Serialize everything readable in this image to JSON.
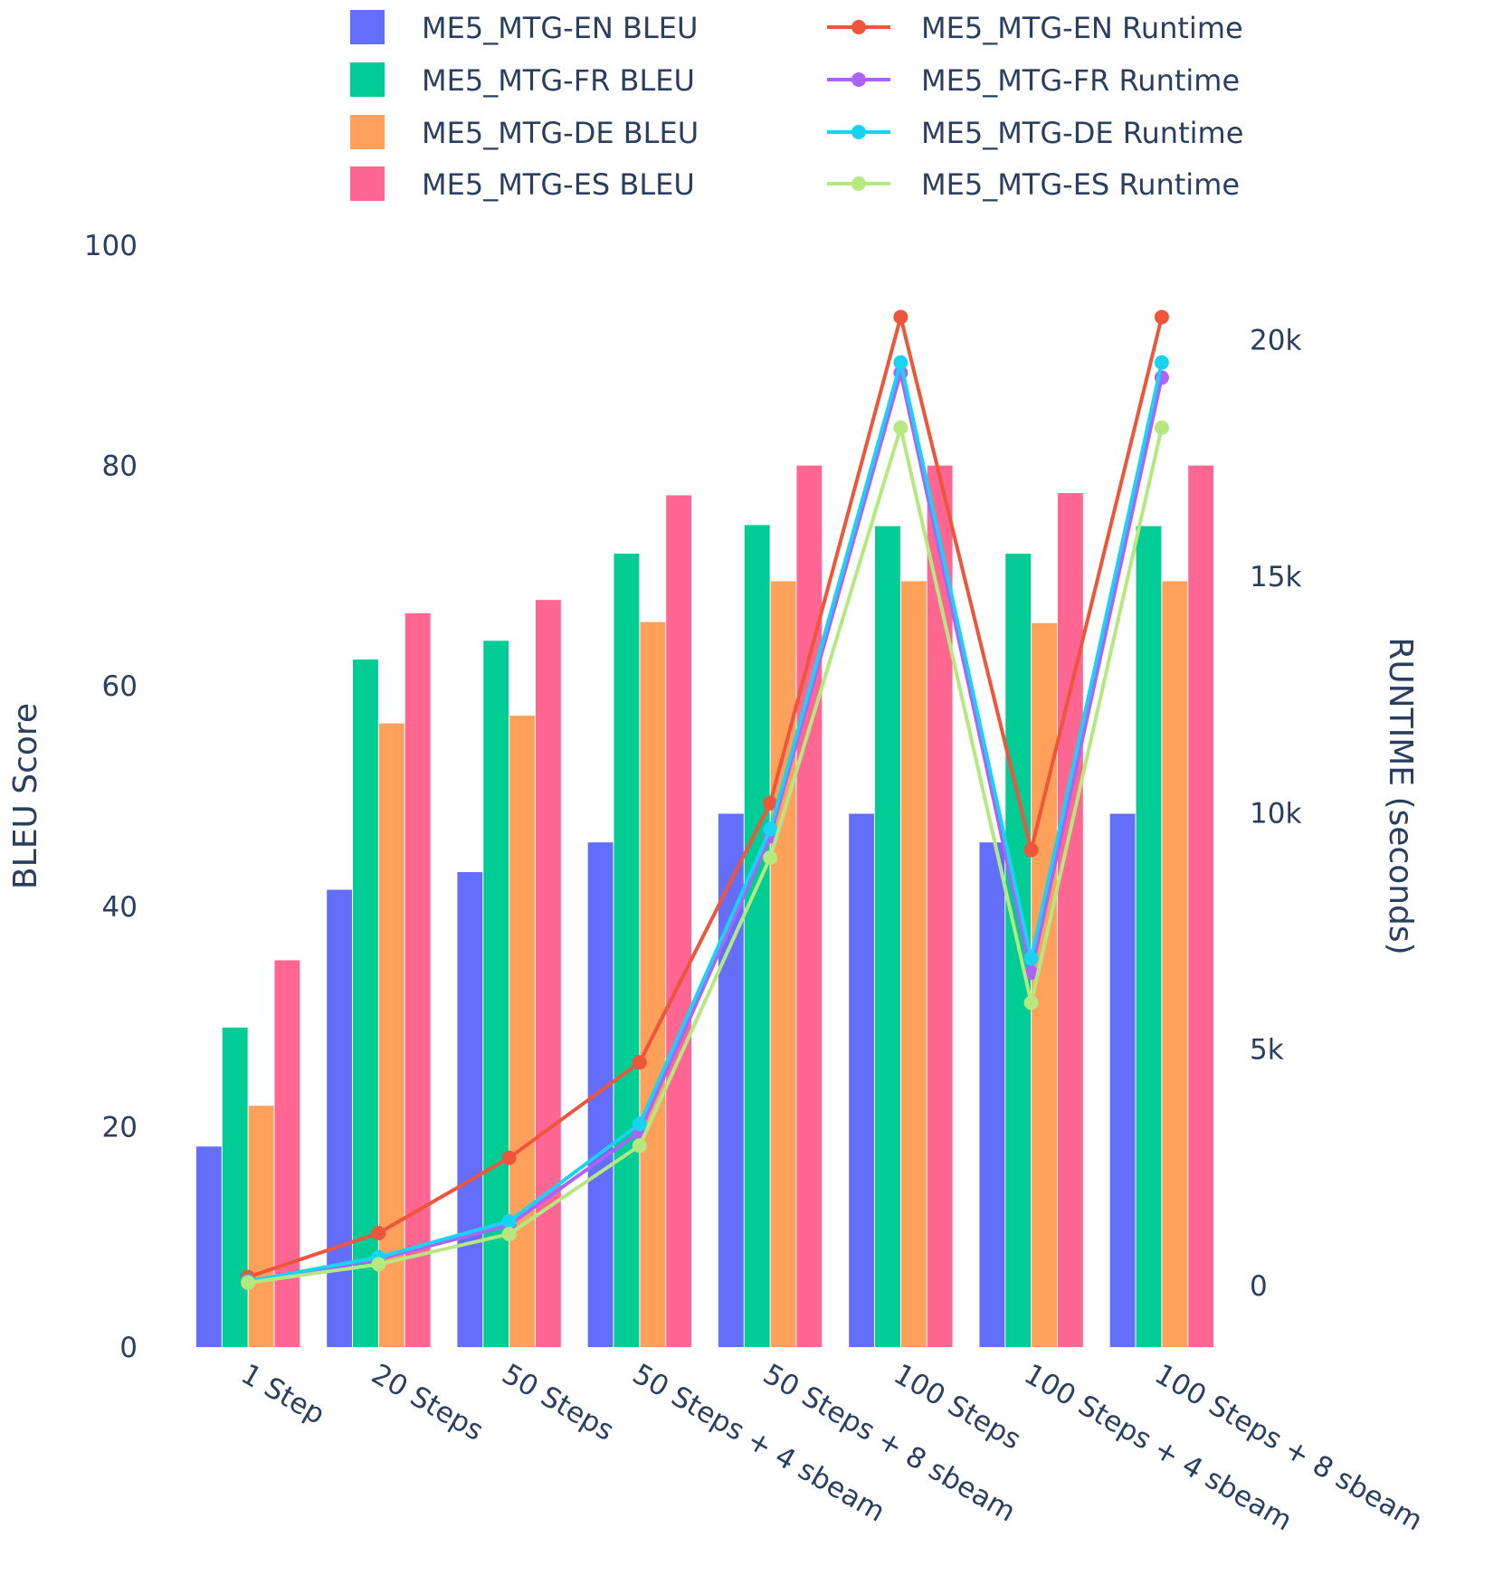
{
  "chart_data": {
    "type": "bar+line",
    "categories": [
      "1 Step",
      "20 Steps",
      "50 Steps",
      "50 Steps + 4 sbeam",
      "50 Steps + 8 sbeam",
      "100 Steps",
      "100 Steps + 4 sbeam",
      "100 Steps + 8 sbeam"
    ],
    "y_left": {
      "label": "BLEU Score",
      "range": [
        0,
        100
      ],
      "ticks": [
        0,
        20,
        40,
        60,
        80,
        100
      ],
      "tick_labels": [
        "0",
        "20",
        "40",
        "60",
        "80",
        "100"
      ]
    },
    "y_right": {
      "label": "RUNTIME (seconds)",
      "range": [
        -1300,
        22000
      ],
      "ticks": [
        0,
        5000,
        10000,
        15000,
        20000
      ],
      "tick_labels": [
        "0",
        "5k",
        "10k",
        "15k",
        "20k"
      ]
    },
    "bar_series": [
      {
        "name": "ME5_MTG-EN BLEU",
        "color": "#636efa",
        "values": [
          18.2,
          41.5,
          43.1,
          45.8,
          48.4,
          48.4,
          45.8,
          48.4
        ]
      },
      {
        "name": "ME5_MTG-FR BLEU",
        "color": "#00cc96",
        "values": [
          29.0,
          62.4,
          64.1,
          72.0,
          74.6,
          74.5,
          72.0,
          74.5
        ]
      },
      {
        "name": "ME5_MTG-DE BLEU",
        "color": "#ffa15a",
        "values": [
          21.9,
          56.6,
          57.3,
          65.8,
          69.5,
          69.5,
          65.7,
          69.5
        ]
      },
      {
        "name": "ME5_MTG-ES BLEU",
        "color": "#ff6692",
        "values": [
          35.1,
          66.6,
          67.8,
          77.3,
          80.0,
          80.0,
          77.5,
          80.0
        ]
      }
    ],
    "line_series": [
      {
        "name": "ME5_MTG-EN Runtime",
        "color": "#ef553b",
        "values": [
          180,
          1110,
          2700,
          4720,
          10200,
          20480,
          9210,
          20480
        ]
      },
      {
        "name": "ME5_MTG-FR Runtime",
        "color": "#ab63fa",
        "values": [
          90,
          560,
          1280,
          3250,
          9500,
          19300,
          6620,
          19200
        ]
      },
      {
        "name": "ME5_MTG-DE Runtime",
        "color": "#19d3f3",
        "values": [
          90,
          600,
          1360,
          3420,
          9650,
          19520,
          6920,
          19520
        ]
      },
      {
        "name": "ME5_MTG-ES Runtime",
        "color": "#b6e880",
        "values": [
          60,
          450,
          1090,
          2960,
          9050,
          18140,
          5980,
          18140
        ]
      }
    ],
    "legend_position": "top",
    "grid": false
  }
}
